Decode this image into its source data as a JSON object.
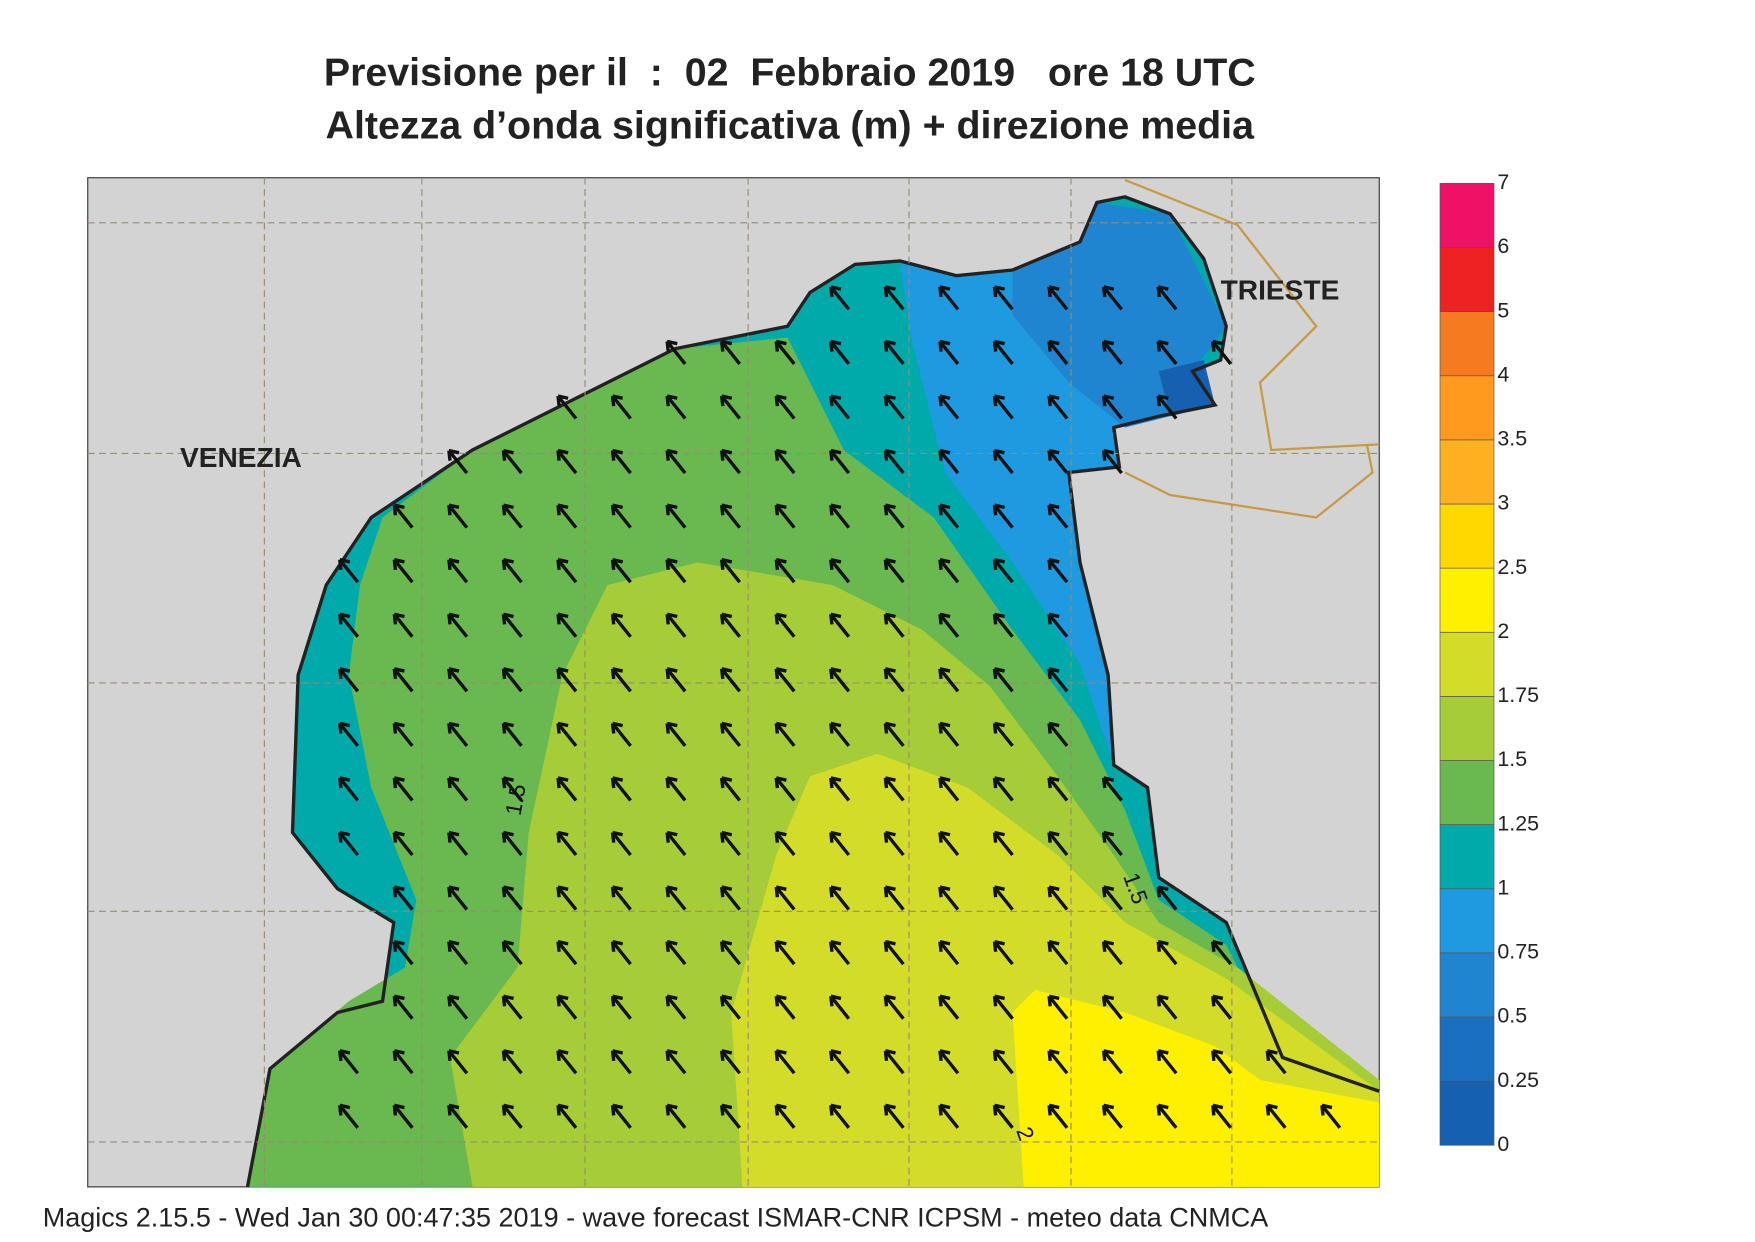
{
  "header": {
    "title_line1": "Previsione per il  :  02  Febbraio 2019   ore 18 UTC",
    "title_line2": "Altezza d’onda significativa (m) + direzione media"
  },
  "map": {
    "places": [
      "VENEZIA",
      "TRIESTE"
    ],
    "contour_labels": [
      "1.5",
      "1.5",
      "2"
    ]
  },
  "legend": {
    "levels": [
      0,
      0.25,
      0.5,
      0.75,
      1,
      1.25,
      1.5,
      1.75,
      2,
      2.5,
      3,
      3.5,
      4,
      5,
      6,
      7
    ],
    "colors": [
      "#1560b0",
      "#1a70c0",
      "#2085d0",
      "#1e9ae0",
      "#00aaaa",
      "#6ab850",
      "#a6cc38",
      "#d4dc2a",
      "#fff000",
      "#ffd800",
      "#ffb020",
      "#ff9a1e",
      "#f57a20",
      "#ee2222",
      "#ee1166"
    ]
  },
  "footer": "Magics 2.15.5 - Wed Jan 30 00:47:35 2019 - wave forecast  ISMAR-CNR  ICPSM - meteo data   CNMCA"
}
